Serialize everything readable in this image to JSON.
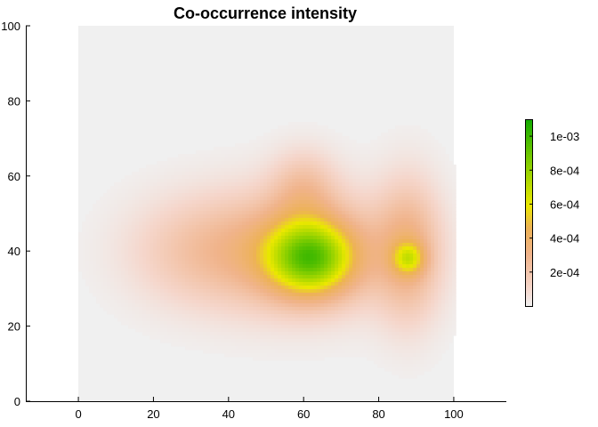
{
  "chart_data": {
    "type": "heatmap",
    "title": "Co-occurrence intensity",
    "xlabel": "",
    "ylabel": "",
    "xlim": [
      -14,
      114
    ],
    "ylim": [
      0,
      100
    ],
    "x_ticks": [
      0,
      20,
      40,
      60,
      80,
      100
    ],
    "y_ticks": [
      0,
      20,
      40,
      60,
      80,
      100
    ],
    "x_tick_labels": [
      "0",
      "20",
      "40",
      "60",
      "80",
      "100"
    ],
    "y_tick_labels": [
      "0",
      "20",
      "40",
      "60",
      "80",
      "100"
    ],
    "grid": false,
    "field_extent": {
      "x": [
        0,
        100
      ],
      "y": [
        0,
        100
      ]
    },
    "value_range": [
      0,
      0.0011
    ],
    "kernels": [
      {
        "x": 62,
        "y": 38,
        "sx": 8,
        "sy": 7,
        "amplitude": 0.00065
      },
      {
        "x": 57,
        "y": 40,
        "sx": 18,
        "sy": 11,
        "amplitude": 0.00035
      },
      {
        "x": 60,
        "y": 57,
        "sx": 6,
        "sy": 7,
        "amplitude": 0.00018
      },
      {
        "x": 88,
        "y": 38,
        "sx": 3,
        "sy": 3,
        "amplitude": 0.00033
      },
      {
        "x": 88,
        "y": 40,
        "sx": 6,
        "sy": 13,
        "amplitude": 0.00029
      },
      {
        "x": 30,
        "y": 40,
        "sx": 13,
        "sy": 10,
        "amplitude": 0.00013
      }
    ],
    "colorscale": [
      [
        0.0,
        "#f0f0f0"
      ],
      [
        0.1,
        "#f5d6cb"
      ],
      [
        0.28,
        "#f0b38a"
      ],
      [
        0.42,
        "#edb255"
      ],
      [
        0.54,
        "#ebe800"
      ],
      [
        0.75,
        "#8cd000"
      ],
      [
        1.0,
        "#11ab00"
      ]
    ],
    "colorbar": {
      "ticks": [
        0.0002,
        0.0004,
        0.0006,
        0.0008,
        0.001
      ],
      "tick_labels": [
        "2e-04",
        "4e-04",
        "6e-04",
        "8e-04",
        "1e-03"
      ]
    }
  }
}
